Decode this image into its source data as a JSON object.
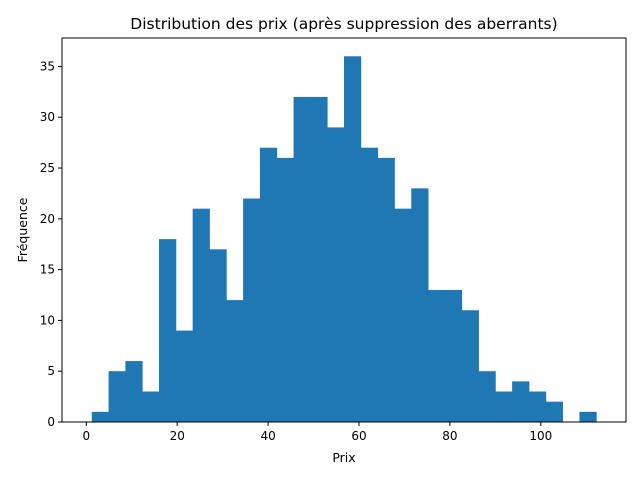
{
  "chart_data": {
    "type": "bar",
    "title": "Distribution des prix (après suppression des aberrants)",
    "xlabel": "Prix",
    "ylabel": "Fréquence",
    "bin_edges": [
      1.2,
      4.9,
      8.6,
      12.3,
      16.0,
      19.7,
      23.4,
      27.1,
      30.8,
      34.5,
      38.2,
      41.9,
      45.6,
      49.3,
      53.0,
      56.7,
      60.4,
      64.1,
      67.8,
      71.5,
      75.2,
      78.9,
      82.6,
      86.3,
      90.0,
      93.7,
      97.4,
      101.1,
      104.8,
      108.5,
      112.2
    ],
    "values": [
      1,
      5,
      6,
      3,
      18,
      9,
      21,
      17,
      12,
      22,
      27,
      26,
      32,
      32,
      29,
      36,
      27,
      26,
      21,
      23,
      13,
      13,
      11,
      5,
      3,
      4,
      3,
      2,
      0,
      1
    ],
    "xlim": [
      -5.35,
      118.75
    ],
    "ylim": [
      0,
      37.8
    ],
    "xticks": [
      0,
      20,
      40,
      60,
      80,
      100
    ],
    "yticks": [
      0,
      5,
      10,
      15,
      20,
      25,
      30,
      35
    ],
    "bar_color": "#1f77b4",
    "grid": false
  }
}
